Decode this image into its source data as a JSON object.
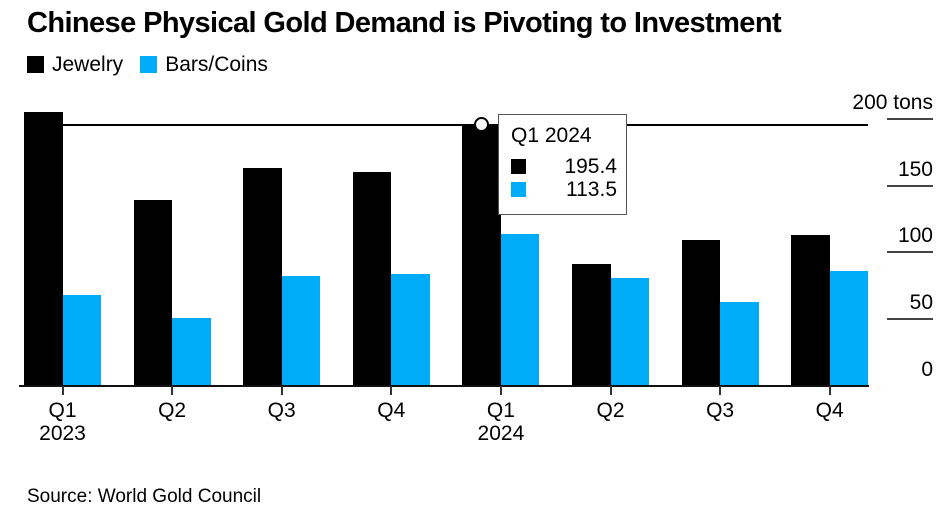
{
  "chart_data": {
    "type": "bar",
    "title": "Chinese Physical Gold Demand is Pivoting to Investment",
    "source": "Source: World Gold Council",
    "unit": "tons",
    "legend_position": "top-left",
    "grid": false,
    "categories": [
      {
        "label": "Q1",
        "sub": "2023"
      },
      {
        "label": "Q2",
        "sub": ""
      },
      {
        "label": "Q3",
        "sub": ""
      },
      {
        "label": "Q4",
        "sub": ""
      },
      {
        "label": "Q1",
        "sub": "2024"
      },
      {
        "label": "Q2",
        "sub": ""
      },
      {
        "label": "Q3",
        "sub": ""
      },
      {
        "label": "Q4",
        "sub": ""
      }
    ],
    "series": [
      {
        "name": "Jewelry",
        "color": "#000000",
        "values": [
          205,
          139,
          163,
          160,
          195.4,
          91,
          109,
          113
        ]
      },
      {
        "name": "Bars/Coins",
        "color": "#00abf7",
        "values": [
          68,
          51,
          82,
          84,
          113.5,
          81,
          63,
          86
        ]
      }
    ],
    "ylim": [
      0,
      200
    ],
    "yticks": [
      {
        "value": 0,
        "label": "0"
      },
      {
        "value": 50,
        "label": "50"
      },
      {
        "value": 100,
        "label": "100"
      },
      {
        "value": 150,
        "label": "150"
      },
      {
        "value": 200,
        "label": "200 tons"
      }
    ],
    "annotation": {
      "highlight_category": "Q1 2024",
      "reference_line_value": 195.4,
      "marker": "open-circle-on-jewelry-bar-top"
    },
    "tooltip": {
      "title": "Q1 2024",
      "rows": [
        {
          "series": "Jewelry",
          "value": "195.4",
          "color": "#000000"
        },
        {
          "series": "Bars/Coins",
          "value": "113.5",
          "color": "#00abf7"
        }
      ]
    }
  }
}
